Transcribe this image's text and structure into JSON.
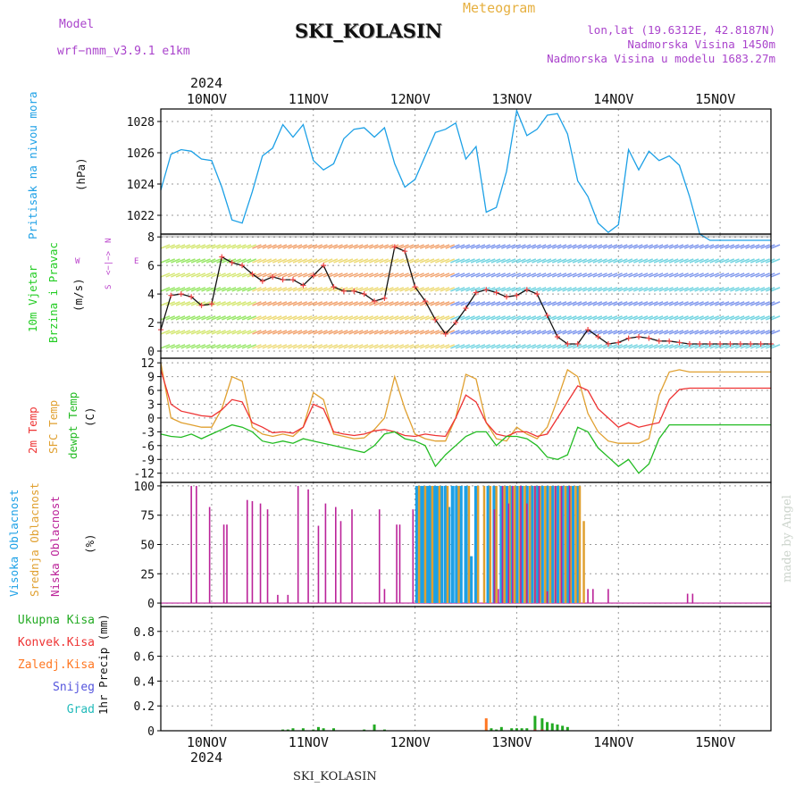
{
  "header": {
    "model_label": "Model",
    "model_name": "wrf−nmm_v3.9.1 e1km",
    "title": "SKI_KOLASIN",
    "meteogram_label": "Meteogram",
    "lonlat": "lon,lat (19.6312E, 42.8187N)",
    "altitude": "Nadmorska Visina 1450m",
    "model_altitude": "Nadmorska Visina u modelu 1683.27m",
    "year_top": "2024",
    "year_bottom": "2024",
    "footer_station": "SKI_KOLASIN",
    "credit": "made by Angel"
  },
  "colors": {
    "pressure": "#1ca0e6",
    "wind_green": "#22cc22",
    "wind_magenta": "#bb44cc",
    "temp2m": "#ee3333",
    "sfc": "#e0a030",
    "dewpt": "#22bb22",
    "cloud_high": "#1ca0e6",
    "cloud_mid": "#e0a030",
    "cloud_low": "#bb2299",
    "precip_total": "#22aa22",
    "precip_conv": "#ee3333",
    "precip_frz": "#ff7722",
    "precip_snow": "#5555dd",
    "precip_grad": "#22bbbb"
  },
  "labels": {
    "pressure": [
      "Pritisak na nivou mora",
      "(hPa)"
    ],
    "wind": [
      "10m Vjetar",
      "Brzina i Pravac",
      "(m/s)"
    ],
    "wind_compass": [
      "N",
      "<−|−>",
      "S",
      "W",
      "E"
    ],
    "temp": [
      "2m Temp",
      "SFC Temp",
      "dewpt Temp",
      "(C)"
    ],
    "cloud": [
      "Visoka Oblacnost",
      "Srednja Oblacnost",
      "Niska Oblacnost",
      "(%)"
    ],
    "precip": [
      "Ukupna Kisa",
      "Konvek.Kisa",
      "Zaledj.Kisa",
      "Snijeg",
      "Grad",
      "1hr Precip (mm)"
    ]
  },
  "chart_data": [
    {
      "type": "line",
      "panel": "pressure",
      "x_unit": "days since 2024-11-09 00:00 UTC (ticks at 00 UTC)",
      "x_ticks": [
        "10NOV",
        "11NOV",
        "12NOV",
        "13NOV",
        "14NOV",
        "15NOV"
      ],
      "ylabel": "(hPa)",
      "ylim": [
        1020.8,
        1028.8
      ],
      "y_ticks": [
        1022,
        1024,
        1026,
        1028
      ],
      "grid": true,
      "x": [
        0.5,
        0.6,
        0.7,
        0.8,
        0.9,
        1.0,
        1.1,
        1.2,
        1.3,
        1.4,
        1.5,
        1.6,
        1.7,
        1.8,
        1.9,
        2.0,
        2.1,
        2.2,
        2.3,
        2.4,
        2.5,
        2.6,
        2.7,
        2.8,
        2.9,
        3.0,
        3.1,
        3.2,
        3.3,
        3.4,
        3.5,
        3.6,
        3.7,
        3.8,
        3.9,
        4.0,
        4.1,
        4.2,
        4.3,
        4.4,
        4.5,
        4.6,
        4.7,
        4.8,
        4.9,
        5.0,
        5.1,
        5.2,
        5.3,
        5.4,
        5.5,
        5.6,
        5.7,
        5.8,
        5.9,
        6.0,
        6.1,
        6.2,
        6.3,
        6.4,
        6.5
      ],
      "series": [
        {
          "name": "Pritisak",
          "values": [
            1023.6,
            1025.9,
            1026.2,
            1026.1,
            1025.6,
            1025.5,
            1023.8,
            1021.7,
            1021.5,
            1023.5,
            1025.8,
            1026.3,
            1027.8,
            1027.0,
            1027.8,
            1025.5,
            1024.9,
            1025.3,
            1026.9,
            1027.5,
            1027.6,
            1027.0,
            1027.6,
            1025.3,
            1023.8,
            1024.3,
            1025.8,
            1027.3,
            1027.5,
            1027.9,
            1025.6,
            1026.4,
            1022.2,
            1022.5,
            1024.8,
            1028.7,
            1027.1,
            1027.5,
            1028.4,
            1028.5,
            1027.2,
            1024.2,
            1023.2,
            1021.5,
            1020.9,
            1021.4,
            1026.2,
            1024.9,
            1026.1,
            1025.5,
            1025.8,
            1025.2,
            1023.2,
            1020.8,
            1020.4,
            1020.4,
            1020.4,
            1020.4,
            1020.4,
            1020.4,
            1020.4
          ]
        }
      ]
    },
    {
      "type": "line",
      "panel": "wind",
      "ylabel": "(m/s)",
      "ylim": [
        -0.5,
        8.2
      ],
      "y_ticks": [
        0,
        2,
        4,
        6,
        8
      ],
      "x": [
        0.5,
        0.6,
        0.7,
        0.8,
        0.9,
        1.0,
        1.1,
        1.2,
        1.3,
        1.4,
        1.5,
        1.6,
        1.7,
        1.8,
        1.9,
        2.0,
        2.1,
        2.2,
        2.3,
        2.4,
        2.5,
        2.6,
        2.7,
        2.8,
        2.9,
        3.0,
        3.1,
        3.2,
        3.3,
        3.4,
        3.5,
        3.6,
        3.7,
        3.8,
        3.9,
        4.0,
        4.1,
        4.2,
        4.3,
        4.4,
        4.5,
        4.6,
        4.7,
        4.8,
        4.9,
        5.0,
        5.1,
        5.2,
        5.3,
        5.4,
        5.5,
        5.6,
        5.7,
        5.8,
        5.9,
        6.0,
        6.1,
        6.2,
        6.3,
        6.4,
        6.5
      ],
      "series": [
        {
          "name": "wind_speed",
          "values": [
            1.5,
            3.9,
            4.0,
            3.8,
            3.2,
            3.3,
            6.6,
            6.2,
            6.0,
            5.4,
            4.9,
            5.2,
            5.0,
            5.0,
            4.6,
            5.3,
            6.0,
            4.5,
            4.2,
            4.2,
            4.0,
            3.5,
            3.7,
            7.3,
            7.0,
            4.5,
            3.5,
            2.2,
            1.2,
            2.0,
            3.0,
            4.1,
            4.3,
            4.1,
            3.8,
            3.9,
            4.3,
            4.0,
            2.5,
            1.0,
            0.5,
            0.5,
            1.5,
            1.0,
            0.5,
            0.6,
            0.9,
            1.0,
            0.9,
            0.7,
            0.7,
            0.6,
            0.5,
            0.5,
            0.5,
            0.5,
            0.5,
            0.5,
            0.5,
            0.5,
            0.5
          ]
        }
      ]
    },
    {
      "type": "line",
      "panel": "temperature",
      "ylabel": "(C)",
      "ylim": [
        -14,
        13
      ],
      "y_ticks": [
        12,
        9,
        6,
        3,
        0,
        -3,
        -6,
        -9,
        -12
      ],
      "x": [
        0.5,
        0.6,
        0.7,
        0.8,
        0.9,
        1.0,
        1.1,
        1.2,
        1.3,
        1.4,
        1.5,
        1.6,
        1.7,
        1.8,
        1.9,
        2.0,
        2.1,
        2.2,
        2.3,
        2.4,
        2.5,
        2.6,
        2.7,
        2.8,
        2.9,
        3.0,
        3.1,
        3.2,
        3.3,
        3.4,
        3.5,
        3.6,
        3.7,
        3.8,
        3.9,
        4.0,
        4.1,
        4.2,
        4.3,
        4.4,
        4.5,
        4.6,
        4.7,
        4.8,
        4.9,
        5.0,
        5.1,
        5.2,
        5.3,
        5.4,
        5.5,
        5.6,
        5.7,
        5.8,
        5.9,
        6.0,
        6.1,
        6.2,
        6.3,
        6.4,
        6.5
      ],
      "series": [
        {
          "name": "2m Temp",
          "values": [
            10.5,
            3.0,
            1.5,
            1.0,
            0.5,
            0.3,
            1.8,
            4.0,
            3.5,
            -1.0,
            -2.0,
            -3.2,
            -3.0,
            -3.3,
            -2.0,
            3.0,
            2.0,
            -3.0,
            -3.5,
            -3.8,
            -3.5,
            -2.8,
            -2.5,
            -3.0,
            -3.8,
            -4.0,
            -3.5,
            -3.8,
            -4.0,
            0.0,
            5.0,
            3.5,
            -1.0,
            -3.5,
            -4.0,
            -3.0,
            -3.0,
            -4.0,
            -3.5,
            0.0,
            3.5,
            7.0,
            6.0,
            2.0,
            0.0,
            -2.0,
            -1.0,
            -2.0,
            -1.5,
            -1.0,
            4.0,
            6.2,
            6.5,
            6.5,
            6.5,
            6.5,
            6.5,
            6.5,
            6.5,
            6.5,
            6.5
          ]
        },
        {
          "name": "SFC Temp",
          "values": [
            12.0,
            0.0,
            -1.0,
            -1.5,
            -2.0,
            -2.0,
            2.0,
            9.0,
            8.0,
            -2.0,
            -3.5,
            -4.0,
            -3.5,
            -4.0,
            -2.0,
            5.5,
            4.0,
            -3.5,
            -4.0,
            -4.5,
            -4.3,
            -2.5,
            0.0,
            9.0,
            2.0,
            -3.5,
            -4.5,
            -5.0,
            -5.0,
            0.0,
            9.5,
            8.5,
            -1.0,
            -4.5,
            -5.0,
            -2.0,
            -3.5,
            -4.5,
            -2.0,
            4.0,
            10.5,
            9.0,
            1.0,
            -3.0,
            -5.0,
            -5.5,
            -5.5,
            -5.5,
            -4.5,
            5.0,
            10.0,
            10.5,
            10.0,
            10.0,
            10.0,
            10.0,
            10.0,
            10.0,
            10.0,
            10.0,
            10.0
          ]
        },
        {
          "name": "dewpt Temp",
          "values": [
            -3.5,
            -4.0,
            -4.2,
            -3.5,
            -4.5,
            -3.5,
            -2.5,
            -1.5,
            -2.0,
            -3.0,
            -5.0,
            -5.5,
            -5.0,
            -5.5,
            -4.5,
            -5.0,
            -5.5,
            -6.0,
            -6.5,
            -7.0,
            -7.5,
            -6.0,
            -3.5,
            -3.0,
            -4.5,
            -5.0,
            -6.0,
            -10.5,
            -8.0,
            -6.0,
            -4.0,
            -3.0,
            -3.0,
            -6.0,
            -4.0,
            -4.0,
            -4.5,
            -6.0,
            -8.5,
            -9.0,
            -8.0,
            -2.0,
            -3.0,
            -6.5,
            -8.5,
            -10.5,
            -9.0,
            -12.0,
            -10.0,
            -4.5,
            -1.5,
            -1.5,
            -1.5,
            -1.5,
            -1.5,
            -1.5,
            -1.5,
            -1.5,
            -1.5,
            -1.5,
            -1.5
          ]
        }
      ]
    },
    {
      "type": "bar",
      "panel": "cloud",
      "ylabel": "(%)",
      "ylim": [
        -3,
        103
      ],
      "y_ticks": [
        0,
        25,
        50,
        75,
        100
      ],
      "series": [
        {
          "name": "Visoka Oblacnost",
          "x": [
            3.02,
            3.05,
            3.08,
            3.12,
            3.15,
            3.19,
            3.22,
            3.26,
            3.3,
            3.33,
            3.37,
            3.41,
            3.45,
            3.5,
            3.55,
            3.6,
            3.72,
            3.78,
            3.85,
            3.9,
            3.95,
            4.0,
            4.05,
            4.1,
            4.15,
            4.2,
            4.25,
            4.3,
            4.35,
            4.4,
            4.45,
            4.5,
            4.55,
            4.6
          ],
          "values": [
            100,
            100,
            100,
            100,
            100,
            100,
            100,
            100,
            100,
            82,
            100,
            100,
            100,
            100,
            40,
            100,
            100,
            100,
            100,
            100,
            100,
            100,
            100,
            100,
            100,
            100,
            100,
            100,
            100,
            100,
            100,
            100,
            100,
            100
          ]
        },
        {
          "name": "Srednja Oblacnost",
          "x": [
            3.04,
            3.1,
            3.17,
            3.24,
            3.32,
            3.43,
            3.53,
            3.62,
            3.68,
            3.74,
            3.8,
            3.88,
            3.93,
            3.98,
            4.03,
            4.08,
            4.13,
            4.18,
            4.23,
            4.28,
            4.33,
            4.38,
            4.43,
            4.48,
            4.53,
            4.58,
            4.62,
            4.66
          ],
          "values": [
            100,
            100,
            100,
            100,
            100,
            100,
            100,
            100,
            100,
            100,
            100,
            100,
            100,
            100,
            100,
            100,
            100,
            100,
            100,
            100,
            100,
            100,
            100,
            100,
            100,
            100,
            100,
            70
          ]
        },
        {
          "name": "Niska Oblacnost",
          "x": [
            0.8,
            0.85,
            0.98,
            1.12,
            1.15,
            1.35,
            1.4,
            1.48,
            1.55,
            1.65,
            1.75,
            1.85,
            1.95,
            2.05,
            2.12,
            2.22,
            2.27,
            2.38,
            2.65,
            2.7,
            2.82,
            2.85,
            2.98,
            3.78,
            3.82,
            3.86,
            3.92,
            3.96,
            4.04,
            4.1,
            4.18,
            4.22,
            4.3,
            4.38,
            4.44,
            4.52,
            4.7,
            4.75,
            4.9,
            5.68,
            5.73
          ],
          "values": [
            100,
            100,
            82,
            67,
            67,
            88,
            87,
            85,
            80,
            7,
            7,
            100,
            97,
            66,
            85,
            82,
            70,
            80,
            80,
            12,
            67,
            67,
            80,
            80,
            12,
            100,
            85,
            100,
            100,
            85,
            100,
            100,
            10,
            100,
            100,
            100,
            12,
            12,
            12,
            8,
            8
          ]
        }
      ]
    },
    {
      "type": "bar",
      "panel": "precip",
      "ylabel": "1hr Precip (mm)",
      "ylim": [
        0,
        1.0
      ],
      "y_ticks": [
        0,
        0.2,
        0.4,
        0.6,
        0.8
      ],
      "series": [
        {
          "name": "Ukupna Kisa",
          "x": [
            1.7,
            1.75,
            1.8,
            1.9,
            2.0,
            2.05,
            2.1,
            2.2,
            2.5,
            2.6,
            2.7,
            3.75,
            3.8,
            3.85,
            3.95,
            4.0,
            4.05,
            4.1,
            4.18,
            4.25,
            4.3,
            4.35,
            4.4,
            4.45,
            4.5
          ],
          "values": [
            0.01,
            0.01,
            0.02,
            0.02,
            0.01,
            0.03,
            0.02,
            0.02,
            0.01,
            0.05,
            0.01,
            0.02,
            0.01,
            0.03,
            0.02,
            0.02,
            0.02,
            0.02,
            0.12,
            0.1,
            0.07,
            0.06,
            0.05,
            0.04,
            0.03
          ]
        },
        {
          "name": "Konvek.Kisa",
          "x": [
            4.18,
            4.25
          ],
          "values": [
            0.01,
            0.01
          ]
        },
        {
          "name": "Zaledj.Kisa",
          "x": [
            3.7
          ],
          "values": [
            0.1
          ]
        },
        {
          "name": "Snijeg",
          "x": [],
          "values": []
        },
        {
          "name": "Grad",
          "x": [],
          "values": []
        }
      ]
    }
  ]
}
